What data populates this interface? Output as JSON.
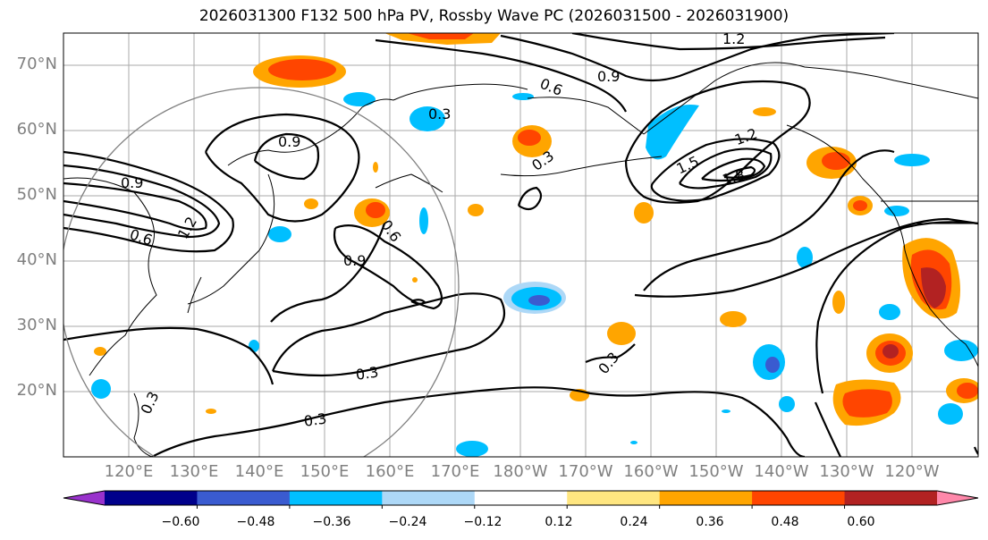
{
  "title": "2026031300 F132 500 hPa PV, Rossby Wave PC (2026031500 - 2026031900)",
  "lat_labels": [
    "70°N",
    "60°N",
    "50°N",
    "40°N",
    "30°N",
    "20°N"
  ],
  "lon_labels": [
    "120°E",
    "130°E",
    "140°E",
    "150°E",
    "160°E",
    "170°E",
    "180°W",
    "170°W",
    "160°W",
    "150°W",
    "140°W",
    "130°W",
    "120°W"
  ],
  "contour_labels": [
    "1.2",
    "0.9",
    "0.6",
    "0.3",
    "0.9",
    "0.9",
    "0.6",
    "1.2",
    "0.6",
    "0.9",
    "0.3",
    "1.2",
    "1.5",
    "1.8",
    "0.3",
    "0.3",
    "0.3",
    "0.3"
  ],
  "colorbar": {
    "ticks": [
      "−0.60",
      "−0.48",
      "−0.36",
      "−0.24",
      "−0.12",
      "0.12",
      "0.24",
      "0.36",
      "0.48",
      "0.60"
    ],
    "colors": [
      "#9932cc",
      "#00008b",
      "#3a5bd0",
      "#00bfff",
      "#add8f7",
      "#ffffff",
      "#ffe680",
      "#ffa500",
      "#ff4500",
      "#b22222",
      "#ff88aa"
    ]
  },
  "colors": {
    "frame": "#000000",
    "grid": "#999999",
    "axis_label": "#808080"
  }
}
